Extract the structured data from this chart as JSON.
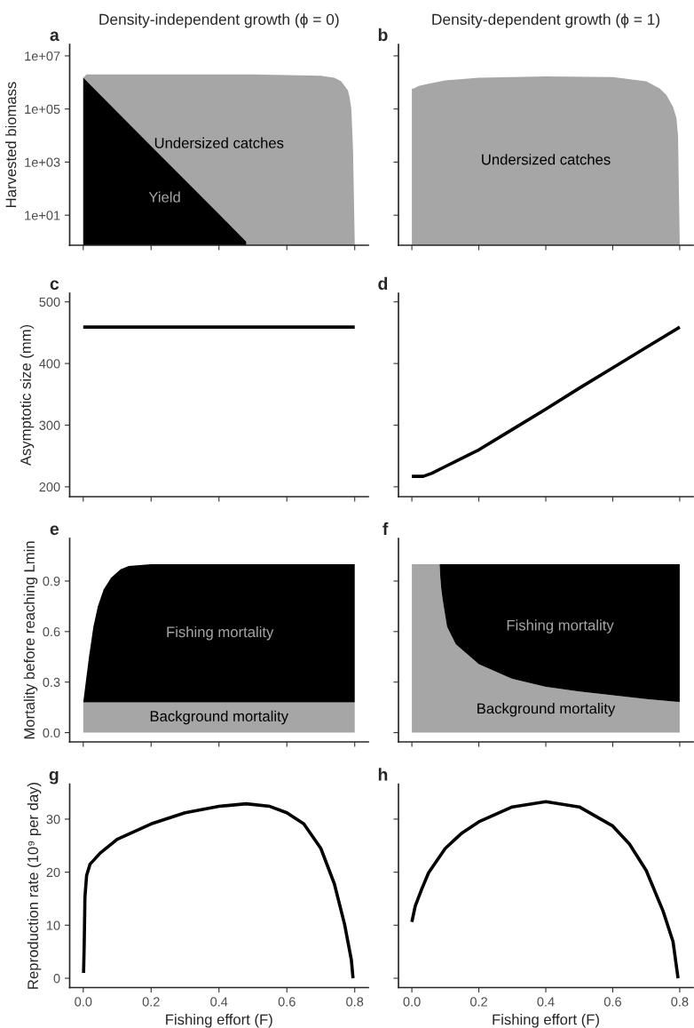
{
  "chart_data": [
    {
      "type": "area",
      "title": "Density-independent growth (ϕ = 0)",
      "ylabel": "Harvested biomass",
      "log": true,
      "xlim": [
        -0.04,
        0.84
      ],
      "xticks": [
        0,
        0.2,
        0.4,
        0.6,
        0.8
      ],
      "ylim": [
        0.74,
        27000000.0
      ],
      "yticks": [
        {
          "value": 10,
          "label": "1e+01"
        },
        {
          "value": 1000,
          "label": "1e+03"
        },
        {
          "value": 100000,
          "label": "1e+05"
        },
        {
          "value": 10000000,
          "label": "1e+07"
        }
      ],
      "tick_labels": "y",
      "series": [
        {
          "name": "Undersized catches",
          "color": "#a6a6a6",
          "x": [
            0,
            0.01,
            0.1,
            0.3,
            0.5,
            0.7,
            0.74,
            0.76,
            0.78,
            0.785,
            0.79,
            0.795,
            0.8
          ],
          "values": [
            1500000,
            2000000,
            2000000,
            2000000,
            2000000,
            1800000,
            1500000,
            1100000,
            500000,
            270000,
            100000,
            3000,
            1
          ]
        },
        {
          "name": "Yield",
          "color": "#000000",
          "x": [
            0,
            0.1,
            0.2,
            0.3,
            0.4,
            0.48
          ],
          "values": [
            1500000,
            77000,
            4000,
            210,
            11,
            1
          ]
        }
      ],
      "annotations": [
        "a"
      ]
    },
    {
      "type": "area",
      "title": "Density-dependent growth (ϕ = 1)",
      "log": true,
      "xlim": [
        -0.04,
        0.84
      ],
      "xticks": [
        0,
        0.2,
        0.4,
        0.6,
        0.8
      ],
      "ylim": [
        0.74,
        27000000.0
      ],
      "yticks": [
        {
          "value": 10,
          "label": null
        },
        {
          "value": 1000,
          "label": null
        },
        {
          "value": 100000,
          "label": null
        },
        {
          "value": 10000000,
          "label": null
        }
      ],
      "tick_labels": false,
      "series": [
        {
          "name": "Undersized catches",
          "color": "#a6a6a6",
          "x": [
            0,
            0.005,
            0.02,
            0.05,
            0.1,
            0.2,
            0.4,
            0.6,
            0.7,
            0.74,
            0.76,
            0.78,
            0.79,
            0.795,
            0.8
          ],
          "values": [
            590000,
            590000,
            740000,
            900000,
            1200000,
            1500000,
            1700000,
            1600000,
            1100000,
            600000,
            340000,
            120000,
            47000,
            10000,
            1
          ]
        }
      ],
      "annotations": [
        "b"
      ]
    },
    {
      "type": "line",
      "ylabel": "Asymptotic size (mm)",
      "xlim": [
        -0.04,
        0.84
      ],
      "xticks": [
        0,
        0.2,
        0.4,
        0.6,
        0.8
      ],
      "ylim": [
        184,
        514
      ],
      "yticks": [
        200,
        300,
        400,
        500
      ],
      "tick_labels": "y",
      "series": [
        {
          "color": "#000000",
          "x": [
            0,
            0.8
          ],
          "values": [
            459,
            459
          ]
        }
      ],
      "annotations": [
        "c"
      ]
    },
    {
      "type": "line",
      "xlim": [
        -0.04,
        0.84
      ],
      "xticks": [
        0,
        0.2,
        0.4,
        0.6,
        0.8
      ],
      "ylim": [
        184,
        514
      ],
      "yticks": [
        200,
        300,
        400,
        500
      ],
      "tick_labels": false,
      "series": [
        {
          "color": "#000000",
          "x": [
            0,
            0.034,
            0.06,
            0.1,
            0.2,
            0.3,
            0.4,
            0.5,
            0.6,
            0.7,
            0.8
          ],
          "values": [
            217,
            217,
            222,
            233,
            260,
            293,
            326,
            360,
            393,
            426,
            459
          ]
        }
      ],
      "annotations": [
        "d"
      ]
    },
    {
      "type": "area",
      "stacked": true,
      "ylabel": "Mortality before reaching Lmin",
      "xlim": [
        -0.04,
        0.84
      ],
      "xticks": [
        0,
        0.2,
        0.4,
        0.6,
        0.8
      ],
      "ylim": [
        -0.055,
        1.153
      ],
      "yticks": [
        {
          "value": 0,
          "label": "0.0"
        },
        0.3,
        0.6,
        0.9
      ],
      "tick_labels": "y",
      "series": [
        {
          "name": "Background mortality",
          "color": "#a6a6a6",
          "x": [
            0,
            0.005,
            0.017,
            0.03,
            0.043,
            0.06,
            0.082,
            0.11,
            0.134,
            0.2,
            0.8
          ],
          "values": [
            0.18,
            0.18,
            0.18,
            0.18,
            0.18,
            0.18,
            0.18,
            0.18,
            0.18,
            0.18,
            0.18
          ]
        },
        {
          "name": "Fishing mortality",
          "color": "#000000",
          "x": [
            0,
            0.005,
            0.017,
            0.03,
            0.043,
            0.06,
            0.082,
            0.11,
            0.134,
            0.2,
            0.8
          ],
          "values": [
            0,
            0.08,
            0.27,
            0.45,
            0.57,
            0.67,
            0.74,
            0.79,
            0.81,
            0.82,
            0.82
          ]
        }
      ],
      "annotations": [
        "e"
      ]
    },
    {
      "type": "area",
      "stacked": true,
      "xlim": [
        -0.04,
        0.84
      ],
      "xticks": [
        0,
        0.2,
        0.4,
        0.6,
        0.8
      ],
      "ylim": [
        -0.055,
        1.153
      ],
      "yticks": [
        0,
        0.3,
        0.6,
        0.9
      ],
      "tick_labels": false,
      "series": [
        {
          "name": "Background mortality",
          "color": "#a6a6a6",
          "x": [
            0,
            0.083,
            0.085,
            0.088,
            0.092,
            0.105,
            0.131,
            0.2,
            0.3,
            0.4,
            0.5,
            0.6,
            0.7,
            0.8
          ],
          "values": [
            1,
            1,
            0.92,
            0.85,
            0.79,
            0.63,
            0.525,
            0.406,
            0.319,
            0.272,
            0.245,
            0.222,
            0.2,
            0.182
          ]
        },
        {
          "name": "Fishing mortality",
          "color": "#000000",
          "x": [
            0,
            0.083,
            0.085,
            0.088,
            0.092,
            0.105,
            0.131,
            0.2,
            0.3,
            0.4,
            0.5,
            0.6,
            0.7,
            0.8
          ],
          "values": [
            0,
            0,
            0.08,
            0.15,
            0.21,
            0.37,
            0.475,
            0.594,
            0.681,
            0.728,
            0.755,
            0.778,
            0.8,
            0.818
          ]
        }
      ],
      "annotations": [
        "f"
      ]
    },
    {
      "type": "line",
      "xlabel": "Fishing effort (F)",
      "ylabel": "Reproduction rate (10⁹ per day)",
      "xlim": [
        -0.04,
        0.84
      ],
      "xticks": [
        {
          "value": 0,
          "label": "0.0"
        },
        0.2,
        0.4,
        0.6,
        0.8
      ],
      "ylim": [
        -1.76,
        36.6
      ],
      "yticks": [
        0,
        10,
        20,
        30
      ],
      "series": [
        {
          "color": "#000000",
          "x": [
            0.001,
            0.003,
            0.005,
            0.01,
            0.02,
            0.05,
            0.1,
            0.2,
            0.3,
            0.4,
            0.48,
            0.55,
            0.6,
            0.65,
            0.7,
            0.74,
            0.77,
            0.79,
            0.795
          ],
          "values": [
            1.0,
            6.9,
            15.3,
            19.4,
            21.5,
            23.6,
            26.2,
            29.1,
            31.2,
            32.4,
            32.9,
            32.4,
            31.2,
            29.1,
            24.5,
            17.8,
            10.2,
            3.5,
            0
          ]
        }
      ],
      "annotations": [
        "g"
      ]
    },
    {
      "type": "line",
      "xlabel": "Fishing effort (F)",
      "xlim": [
        -0.04,
        0.84
      ],
      "xticks": [
        {
          "value": 0,
          "label": "0.0"
        },
        0.2,
        0.4,
        0.6,
        0.8
      ],
      "ylim": [
        -1.76,
        36.6
      ],
      "yticks": [
        0,
        10,
        20,
        30
      ],
      "tick_labels": "x",
      "series": [
        {
          "color": "#000000",
          "x": [
            0,
            0.01,
            0.03,
            0.05,
            0.1,
            0.15,
            0.2,
            0.3,
            0.4,
            0.5,
            0.6,
            0.65,
            0.7,
            0.75,
            0.78,
            0.795
          ],
          "values": [
            10.6,
            13.6,
            16.9,
            19.9,
            24.5,
            27.4,
            29.5,
            32.3,
            33.3,
            32.3,
            28.7,
            25.3,
            20.3,
            12.7,
            6.9,
            0
          ]
        }
      ],
      "annotations": [
        "h"
      ]
    }
  ]
}
